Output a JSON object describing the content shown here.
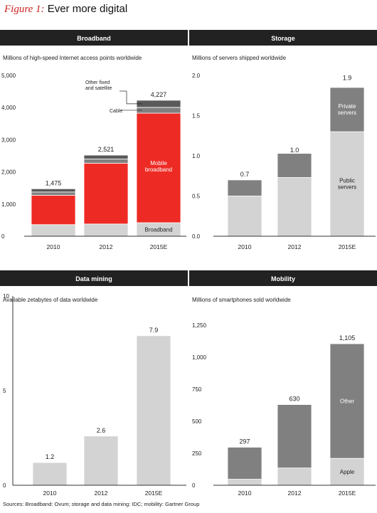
{
  "figure": {
    "label": "Figure 1:",
    "title": "Ever more digital",
    "source": "Sources: Broadband: Ovum; storage and data mining: IDC; mobility: Gartner Group"
  },
  "colors": {
    "header_bg": "#222222",
    "red": "#ee2a24",
    "dark_gray": "#5a5a5a",
    "mid_gray": "#808080",
    "light_gray": "#d3d3d3",
    "axis": "#333333"
  },
  "chart_data": [
    {
      "id": "broadband",
      "type": "bar",
      "stacked": true,
      "title": "Broadband",
      "subtitle": "Millions of high-speed Internet access points worldwide",
      "categories": [
        "2010",
        "2012",
        "2015E"
      ],
      "ylim": [
        0,
        5000
      ],
      "yticks": [
        "0",
        "1,000",
        "2,000",
        "3,000",
        "4,000",
        "5,000"
      ],
      "ytick_values": [
        0,
        1000,
        2000,
        3000,
        4000,
        5000
      ],
      "totals": [
        1475,
        2521,
        4227
      ],
      "total_labels": [
        "1,475",
        "2,521",
        "4,227"
      ],
      "series": [
        {
          "name": "Broadband",
          "values": [
            360,
            380,
            420
          ],
          "color": "#d3d3d3"
        },
        {
          "name": "Mobile broadband",
          "values": [
            915,
            1891,
            3407
          ],
          "color": "#ee2a24"
        },
        {
          "name": "Cable",
          "values": [
            100,
            130,
            180
          ],
          "color": "#808080"
        },
        {
          "name": "Other fixed and satellite",
          "values": [
            100,
            120,
            220
          ],
          "color": "#5a5a5a"
        }
      ],
      "annotations": {
        "other_fixed": [
          "Other fixed",
          "and satellite"
        ],
        "cable": "Cable",
        "mobile": [
          "Mobile",
          "broadband"
        ],
        "broadband": "Broadband"
      }
    },
    {
      "id": "storage",
      "type": "bar",
      "stacked": true,
      "title": "Storage",
      "subtitle": "Millions of servers shipped worldwide",
      "categories": [
        "2010",
        "2012",
        "2015E"
      ],
      "ylim": [
        0,
        2.0
      ],
      "yticks": [
        "0.0",
        "0.5",
        "1.0",
        "1.5",
        "2.0"
      ],
      "ytick_values": [
        0,
        0.5,
        1.0,
        1.5,
        2.0
      ],
      "totals": [
        0.7,
        1.0,
        1.9
      ],
      "total_labels": [
        "0.7",
        "1.0",
        "1.9"
      ],
      "series": [
        {
          "name": "Public servers",
          "values": [
            0.5,
            0.73,
            1.3
          ],
          "color": "#d3d3d3"
        },
        {
          "name": "Private servers",
          "values": [
            0.2,
            0.3,
            0.55
          ],
          "color": "#808080"
        }
      ],
      "annotations": {
        "private": [
          "Private",
          "servers"
        ],
        "public": [
          "Public",
          "servers"
        ]
      }
    },
    {
      "id": "datamining",
      "type": "bar",
      "stacked": false,
      "title": "Data mining",
      "subtitle": "Available zetabytes of data worldwide",
      "categories": [
        "2010",
        "2012",
        "2015E"
      ],
      "ylim": [
        0,
        10
      ],
      "yticks": [
        "0",
        "5",
        "10"
      ],
      "ytick_values": [
        0,
        5,
        10
      ],
      "totals": [
        1.2,
        2.6,
        7.9
      ],
      "total_labels": [
        "1.2",
        "2.6",
        "7.9"
      ],
      "series": [
        {
          "name": "",
          "values": [
            1.2,
            2.6,
            7.9
          ],
          "color": "#d3d3d3"
        }
      ]
    },
    {
      "id": "mobility",
      "type": "bar",
      "stacked": true,
      "title": "Mobility",
      "subtitle": "Millions of smartphones sold worldwide",
      "categories": [
        "2010",
        "2012",
        "2015E"
      ],
      "ylim": [
        0,
        1250
      ],
      "yticks": [
        "0",
        "250",
        "500",
        "750",
        "1,000",
        "1,250"
      ],
      "ytick_values": [
        0,
        250,
        500,
        750,
        1000,
        1250
      ],
      "totals": [
        297,
        630,
        1105
      ],
      "total_labels": [
        "297",
        "630",
        "1,105"
      ],
      "series": [
        {
          "name": "Apple",
          "values": [
            47,
            135,
            210
          ],
          "color": "#d3d3d3"
        },
        {
          "name": "Other",
          "values": [
            250,
            495,
            895
          ],
          "color": "#808080"
        }
      ],
      "annotations": {
        "other": "Other",
        "apple": "Apple"
      }
    }
  ]
}
